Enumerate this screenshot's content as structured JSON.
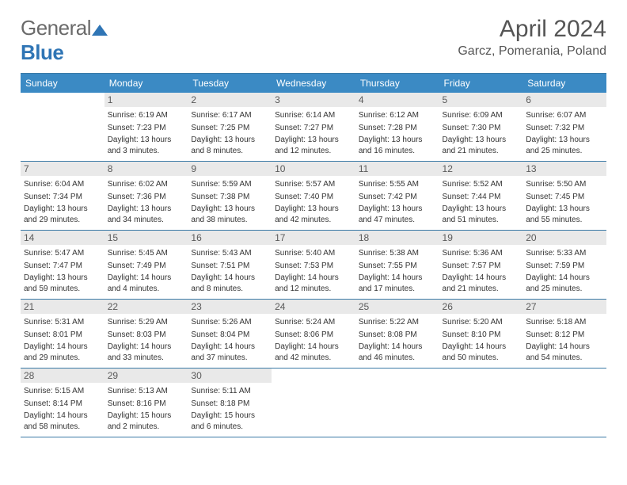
{
  "brand": {
    "part1": "General",
    "part2": "Blue"
  },
  "title": "April 2024",
  "location": "Garcz, Pomerania, Poland",
  "colors": {
    "header_bg": "#3b8ac4",
    "header_text": "#ffffff",
    "rule": "#3b7aa6",
    "daynum_bg": "#e9e9e9",
    "text": "#333333",
    "title_color": "#555555"
  },
  "day_headers": [
    "Sunday",
    "Monday",
    "Tuesday",
    "Wednesday",
    "Thursday",
    "Friday",
    "Saturday"
  ],
  "weeks": [
    [
      {
        "n": "",
        "sr": "",
        "ss": "",
        "dl": ""
      },
      {
        "n": "1",
        "sr": "Sunrise: 6:19 AM",
        "ss": "Sunset: 7:23 PM",
        "dl": "Daylight: 13 hours and 3 minutes."
      },
      {
        "n": "2",
        "sr": "Sunrise: 6:17 AM",
        "ss": "Sunset: 7:25 PM",
        "dl": "Daylight: 13 hours and 8 minutes."
      },
      {
        "n": "3",
        "sr": "Sunrise: 6:14 AM",
        "ss": "Sunset: 7:27 PM",
        "dl": "Daylight: 13 hours and 12 minutes."
      },
      {
        "n": "4",
        "sr": "Sunrise: 6:12 AM",
        "ss": "Sunset: 7:28 PM",
        "dl": "Daylight: 13 hours and 16 minutes."
      },
      {
        "n": "5",
        "sr": "Sunrise: 6:09 AM",
        "ss": "Sunset: 7:30 PM",
        "dl": "Daylight: 13 hours and 21 minutes."
      },
      {
        "n": "6",
        "sr": "Sunrise: 6:07 AM",
        "ss": "Sunset: 7:32 PM",
        "dl": "Daylight: 13 hours and 25 minutes."
      }
    ],
    [
      {
        "n": "7",
        "sr": "Sunrise: 6:04 AM",
        "ss": "Sunset: 7:34 PM",
        "dl": "Daylight: 13 hours and 29 minutes."
      },
      {
        "n": "8",
        "sr": "Sunrise: 6:02 AM",
        "ss": "Sunset: 7:36 PM",
        "dl": "Daylight: 13 hours and 34 minutes."
      },
      {
        "n": "9",
        "sr": "Sunrise: 5:59 AM",
        "ss": "Sunset: 7:38 PM",
        "dl": "Daylight: 13 hours and 38 minutes."
      },
      {
        "n": "10",
        "sr": "Sunrise: 5:57 AM",
        "ss": "Sunset: 7:40 PM",
        "dl": "Daylight: 13 hours and 42 minutes."
      },
      {
        "n": "11",
        "sr": "Sunrise: 5:55 AM",
        "ss": "Sunset: 7:42 PM",
        "dl": "Daylight: 13 hours and 47 minutes."
      },
      {
        "n": "12",
        "sr": "Sunrise: 5:52 AM",
        "ss": "Sunset: 7:44 PM",
        "dl": "Daylight: 13 hours and 51 minutes."
      },
      {
        "n": "13",
        "sr": "Sunrise: 5:50 AM",
        "ss": "Sunset: 7:45 PM",
        "dl": "Daylight: 13 hours and 55 minutes."
      }
    ],
    [
      {
        "n": "14",
        "sr": "Sunrise: 5:47 AM",
        "ss": "Sunset: 7:47 PM",
        "dl": "Daylight: 13 hours and 59 minutes."
      },
      {
        "n": "15",
        "sr": "Sunrise: 5:45 AM",
        "ss": "Sunset: 7:49 PM",
        "dl": "Daylight: 14 hours and 4 minutes."
      },
      {
        "n": "16",
        "sr": "Sunrise: 5:43 AM",
        "ss": "Sunset: 7:51 PM",
        "dl": "Daylight: 14 hours and 8 minutes."
      },
      {
        "n": "17",
        "sr": "Sunrise: 5:40 AM",
        "ss": "Sunset: 7:53 PM",
        "dl": "Daylight: 14 hours and 12 minutes."
      },
      {
        "n": "18",
        "sr": "Sunrise: 5:38 AM",
        "ss": "Sunset: 7:55 PM",
        "dl": "Daylight: 14 hours and 17 minutes."
      },
      {
        "n": "19",
        "sr": "Sunrise: 5:36 AM",
        "ss": "Sunset: 7:57 PM",
        "dl": "Daylight: 14 hours and 21 minutes."
      },
      {
        "n": "20",
        "sr": "Sunrise: 5:33 AM",
        "ss": "Sunset: 7:59 PM",
        "dl": "Daylight: 14 hours and 25 minutes."
      }
    ],
    [
      {
        "n": "21",
        "sr": "Sunrise: 5:31 AM",
        "ss": "Sunset: 8:01 PM",
        "dl": "Daylight: 14 hours and 29 minutes."
      },
      {
        "n": "22",
        "sr": "Sunrise: 5:29 AM",
        "ss": "Sunset: 8:03 PM",
        "dl": "Daylight: 14 hours and 33 minutes."
      },
      {
        "n": "23",
        "sr": "Sunrise: 5:26 AM",
        "ss": "Sunset: 8:04 PM",
        "dl": "Daylight: 14 hours and 37 minutes."
      },
      {
        "n": "24",
        "sr": "Sunrise: 5:24 AM",
        "ss": "Sunset: 8:06 PM",
        "dl": "Daylight: 14 hours and 42 minutes."
      },
      {
        "n": "25",
        "sr": "Sunrise: 5:22 AM",
        "ss": "Sunset: 8:08 PM",
        "dl": "Daylight: 14 hours and 46 minutes."
      },
      {
        "n": "26",
        "sr": "Sunrise: 5:20 AM",
        "ss": "Sunset: 8:10 PM",
        "dl": "Daylight: 14 hours and 50 minutes."
      },
      {
        "n": "27",
        "sr": "Sunrise: 5:18 AM",
        "ss": "Sunset: 8:12 PM",
        "dl": "Daylight: 14 hours and 54 minutes."
      }
    ],
    [
      {
        "n": "28",
        "sr": "Sunrise: 5:15 AM",
        "ss": "Sunset: 8:14 PM",
        "dl": "Daylight: 14 hours and 58 minutes."
      },
      {
        "n": "29",
        "sr": "Sunrise: 5:13 AM",
        "ss": "Sunset: 8:16 PM",
        "dl": "Daylight: 15 hours and 2 minutes."
      },
      {
        "n": "30",
        "sr": "Sunrise: 5:11 AM",
        "ss": "Sunset: 8:18 PM",
        "dl": "Daylight: 15 hours and 6 minutes."
      },
      {
        "n": "",
        "sr": "",
        "ss": "",
        "dl": ""
      },
      {
        "n": "",
        "sr": "",
        "ss": "",
        "dl": ""
      },
      {
        "n": "",
        "sr": "",
        "ss": "",
        "dl": ""
      },
      {
        "n": "",
        "sr": "",
        "ss": "",
        "dl": ""
      }
    ]
  ]
}
